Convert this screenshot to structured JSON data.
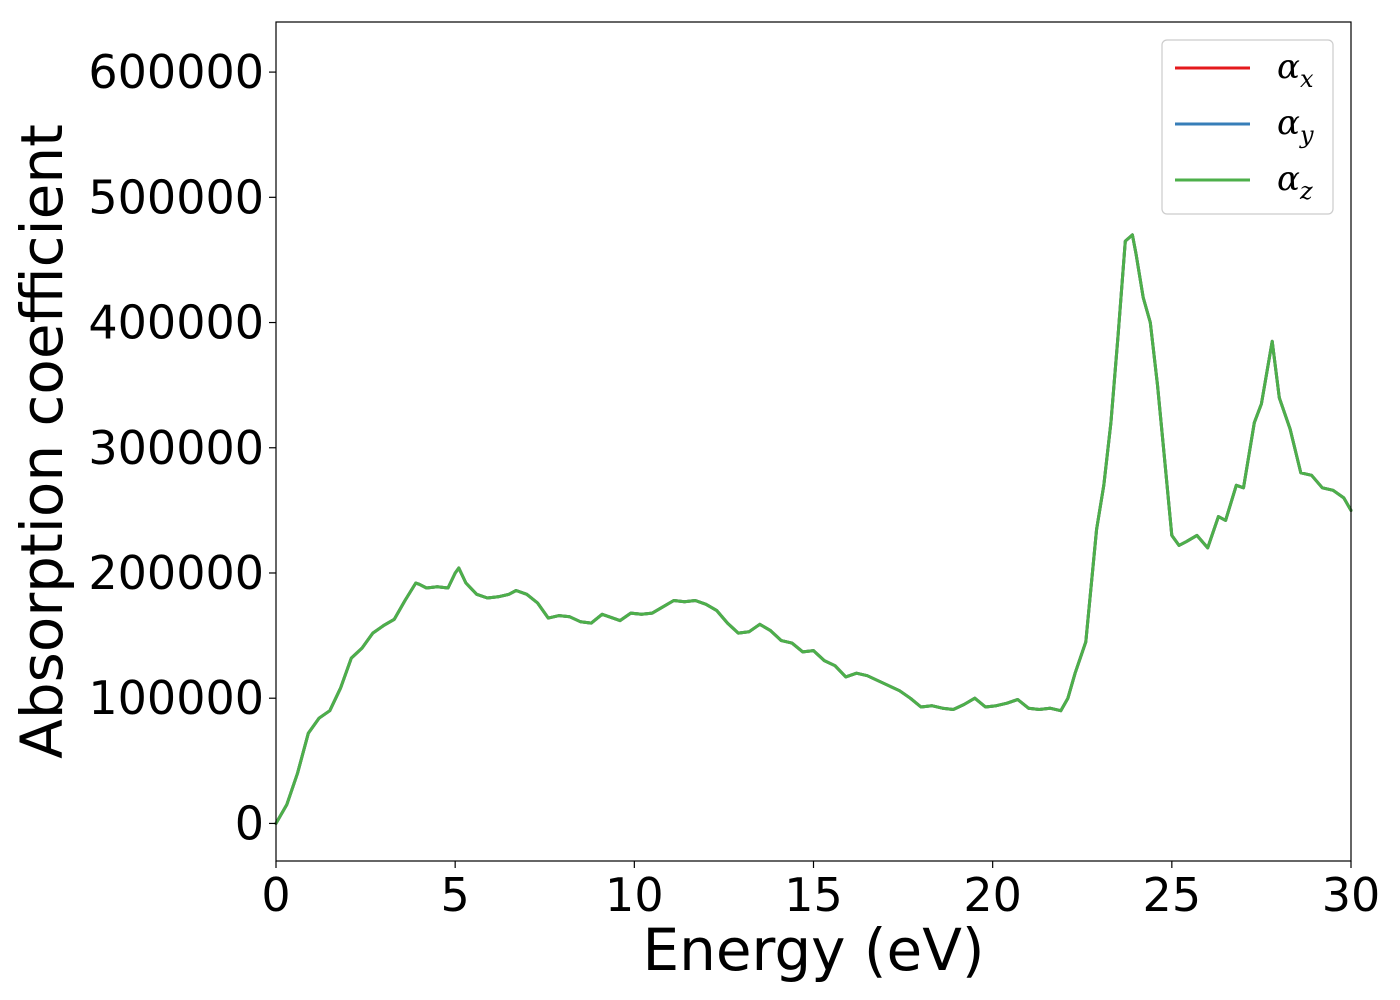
{
  "chart_data": {
    "type": "line",
    "xlabel": "Energy (eV)",
    "ylabel": "Absorption coefficient",
    "xlim": [
      0,
      30
    ],
    "ylim": [
      -30000,
      640000
    ],
    "xticks": [
      0,
      5,
      10,
      15,
      20,
      25,
      30
    ],
    "xtick_labels": [
      "0",
      "5",
      "10",
      "15",
      "20",
      "25",
      "30"
    ],
    "yticks": [
      0,
      100000,
      200000,
      300000,
      400000,
      500000,
      600000
    ],
    "ytick_labels": [
      "0",
      "100000",
      "200000",
      "300000",
      "400000",
      "500000",
      "600000"
    ],
    "grid": false,
    "legend_position": "top-right",
    "x": [
      0,
      0.3,
      0.6,
      0.9,
      1.2,
      1.5,
      1.8,
      2.1,
      2.4,
      2.7,
      3.0,
      3.3,
      3.6,
      3.9,
      4.0,
      4.2,
      4.5,
      4.8,
      5.0,
      5.1,
      5.3,
      5.6,
      5.9,
      6.2,
      6.5,
      6.7,
      7.0,
      7.3,
      7.6,
      7.9,
      8.2,
      8.5,
      8.8,
      9.1,
      9.3,
      9.6,
      9.9,
      10.2,
      10.5,
      10.8,
      11.1,
      11.4,
      11.7,
      12.0,
      12.3,
      12.6,
      12.9,
      13.2,
      13.5,
      13.8,
      14.1,
      14.4,
      14.7,
      15.0,
      15.3,
      15.6,
      15.9,
      16.2,
      16.5,
      16.8,
      17.1,
      17.4,
      17.7,
      18.0,
      18.3,
      18.6,
      18.9,
      19.2,
      19.5,
      19.8,
      20.1,
      20.4,
      20.7,
      21.0,
      21.3,
      21.6,
      21.9,
      22.1,
      22.3,
      22.6,
      22.9,
      23.1,
      23.3,
      23.5,
      23.7,
      23.9,
      24.0,
      24.2,
      24.4,
      24.6,
      24.8,
      25.0,
      25.2,
      25.4,
      25.7,
      26.0,
      26.3,
      26.5,
      26.8,
      27.0,
      27.3,
      27.5,
      27.8,
      28.0,
      28.3,
      28.6,
      28.9,
      29.2,
      29.5,
      29.8,
      30.0
    ],
    "series": [
      {
        "name": "α_x",
        "color": "#e41a1c",
        "values": [
          0,
          15000,
          40000,
          72000,
          84000,
          90000,
          108000,
          132000,
          140000,
          152000,
          158000,
          163000,
          178000,
          192000,
          191000,
          188000,
          189000,
          188000,
          200000,
          204000,
          192000,
          183000,
          180000,
          181000,
          183000,
          186000,
          183000,
          176000,
          164000,
          166000,
          165000,
          161000,
          160000,
          167000,
          165000,
          162000,
          168000,
          167000,
          168000,
          173000,
          178000,
          177000,
          178000,
          175000,
          170000,
          160000,
          152000,
          153000,
          159000,
          154000,
          146000,
          144000,
          137000,
          138000,
          130000,
          126000,
          117000,
          120000,
          118000,
          114000,
          110000,
          106000,
          100000,
          93000,
          94000,
          92000,
          91000,
          95000,
          100000,
          93000,
          94000,
          96000,
          99000,
          92000,
          91000,
          92000,
          90000,
          100000,
          120000,
          145000,
          235000,
          270000,
          320000,
          390000,
          465000,
          470000,
          455000,
          420000,
          400000,
          350000,
          290000,
          230000,
          222000,
          225000,
          230000,
          220000,
          245000,
          242000,
          270000,
          268000,
          320000,
          335000,
          385000,
          340000,
          315000,
          280000,
          278000,
          268000,
          266000,
          260000,
          250000
        ]
      },
      {
        "name": "α_y",
        "color": "#377eb8",
        "values": [
          0,
          15000,
          40000,
          72000,
          84000,
          90000,
          108000,
          132000,
          140000,
          152000,
          158000,
          163000,
          178000,
          192000,
          191000,
          188000,
          189000,
          188000,
          200000,
          204000,
          192000,
          183000,
          180000,
          181000,
          183000,
          186000,
          183000,
          176000,
          164000,
          166000,
          165000,
          161000,
          160000,
          167000,
          165000,
          162000,
          168000,
          167000,
          168000,
          173000,
          178000,
          177000,
          178000,
          175000,
          170000,
          160000,
          152000,
          153000,
          159000,
          154000,
          146000,
          144000,
          137000,
          138000,
          130000,
          126000,
          117000,
          120000,
          118000,
          114000,
          110000,
          106000,
          100000,
          93000,
          94000,
          92000,
          91000,
          95000,
          100000,
          93000,
          94000,
          96000,
          99000,
          92000,
          91000,
          92000,
          90000,
          100000,
          120000,
          145000,
          235000,
          270000,
          320000,
          390000,
          465000,
          470000,
          455000,
          420000,
          400000,
          350000,
          290000,
          230000,
          222000,
          225000,
          230000,
          220000,
          245000,
          242000,
          270000,
          268000,
          320000,
          335000,
          385000,
          340000,
          315000,
          280000,
          278000,
          268000,
          266000,
          260000,
          250000
        ]
      },
      {
        "name": "α_z",
        "color": "#4daf4a",
        "values": [
          0,
          15000,
          40000,
          72000,
          84000,
          90000,
          108000,
          132000,
          140000,
          152000,
          158000,
          163000,
          178000,
          192000,
          191000,
          188000,
          189000,
          188000,
          200000,
          204000,
          192000,
          183000,
          180000,
          181000,
          183000,
          186000,
          183000,
          176000,
          164000,
          166000,
          165000,
          161000,
          160000,
          167000,
          165000,
          162000,
          168000,
          167000,
          168000,
          173000,
          178000,
          177000,
          178000,
          175000,
          170000,
          160000,
          152000,
          153000,
          159000,
          154000,
          146000,
          144000,
          137000,
          138000,
          130000,
          126000,
          117000,
          120000,
          118000,
          114000,
          110000,
          106000,
          100000,
          93000,
          94000,
          92000,
          91000,
          95000,
          100000,
          93000,
          94000,
          96000,
          99000,
          92000,
          91000,
          92000,
          90000,
          100000,
          120000,
          145000,
          235000,
          270000,
          320000,
          390000,
          465000,
          470000,
          455000,
          420000,
          400000,
          350000,
          290000,
          230000,
          222000,
          225000,
          230000,
          220000,
          245000,
          242000,
          270000,
          268000,
          320000,
          335000,
          385000,
          340000,
          315000,
          280000,
          278000,
          268000,
          266000,
          260000,
          250000
        ]
      }
    ],
    "legend": [
      {
        "symbol": "α",
        "sub": "x",
        "color": "#e41a1c"
      },
      {
        "symbol": "α",
        "sub": "y",
        "color": "#377eb8"
      },
      {
        "symbol": "α",
        "sub": "z",
        "color": "#4daf4a"
      }
    ]
  }
}
